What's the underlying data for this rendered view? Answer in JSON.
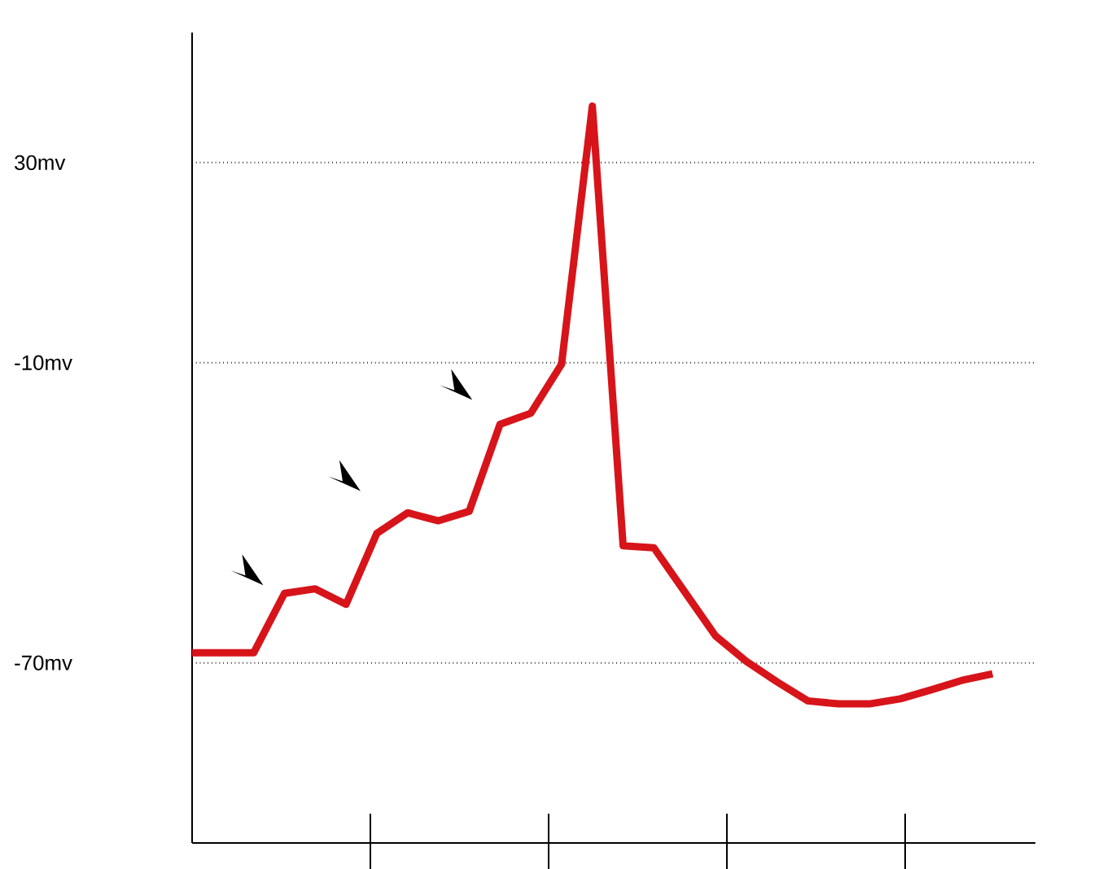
{
  "chart_data": {
    "type": "line",
    "categories": [
      null,
      null,
      null,
      null,
      null,
      null,
      null,
      null,
      null,
      null,
      null,
      null,
      null,
      null,
      null,
      null,
      null,
      null,
      null,
      null,
      null,
      null,
      null,
      null,
      null,
      null,
      null
    ],
    "series": [
      {
        "color": "#d7141a",
        "values": [
          -68,
          -68,
          -68,
          -56.1,
          -55.2,
          -58.3,
          -44.1,
          -40,
          -41.6,
          -39.7,
          -22.3,
          -20.1,
          -10.3,
          41.3,
          -46.6,
          -47,
          -55.8,
          -64.6,
          -69.7,
          -73.8,
          -77.6,
          -78.2,
          -78.2,
          -77.2,
          -75.4,
          -73.5,
          -72.2
        ]
      }
    ],
    "ylim": [
      -106,
      56
    ],
    "yticks": [
      {
        "value": 30,
        "label": "30mv"
      },
      {
        "value": -10,
        "label": "-10mv"
      },
      {
        "value": -70,
        "label": "-70mv"
      }
    ],
    "grid": "y",
    "marker": "none",
    "line_style": "solid",
    "tick_labels": "y"
  }
}
